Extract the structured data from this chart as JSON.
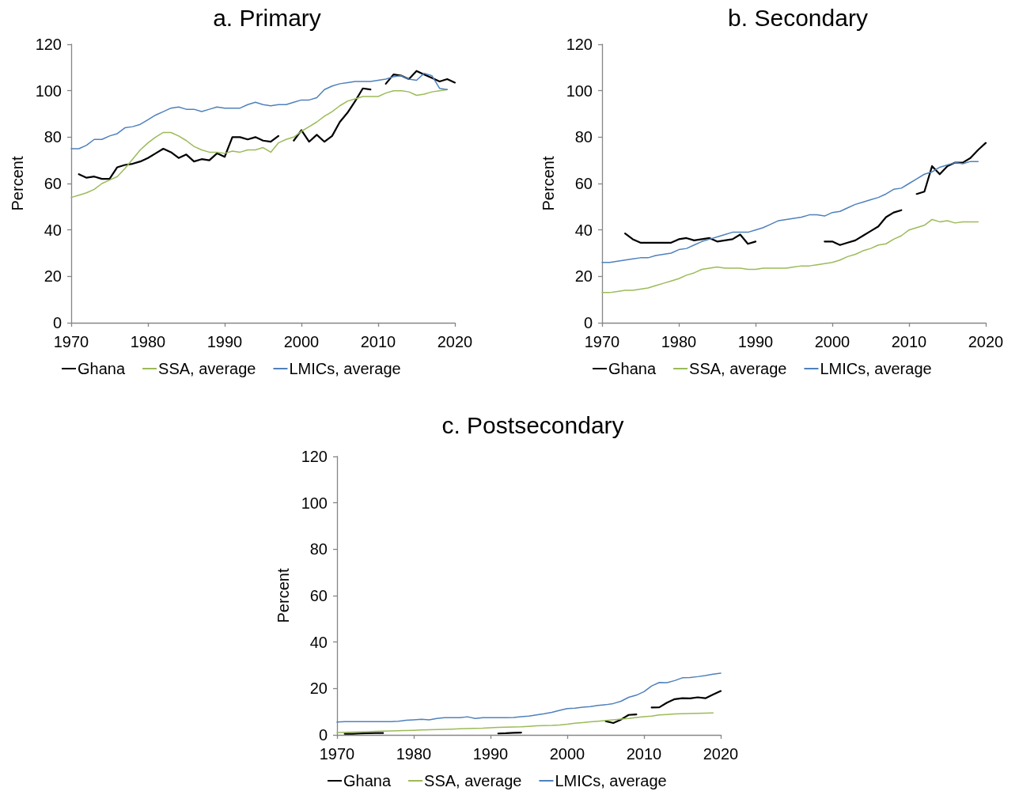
{
  "chart_data": [
    {
      "type": "line",
      "title": "a. Primary",
      "ylabel": "Percent",
      "legend": "bottom",
      "x": [
        1970,
        1971,
        1972,
        1973,
        1974,
        1975,
        1976,
        1977,
        1978,
        1979,
        1980,
        1981,
        1982,
        1983,
        1984,
        1985,
        1986,
        1987,
        1988,
        1989,
        1990,
        1991,
        1992,
        1993,
        1994,
        1995,
        1996,
        1997,
        1998,
        1999,
        2000,
        2001,
        2002,
        2003,
        2004,
        2005,
        2006,
        2007,
        2008,
        2009,
        2010,
        2011,
        2012,
        2013,
        2014,
        2015,
        2016,
        2017,
        2018,
        2019,
        2020
      ],
      "xlim": [
        1970,
        2020
      ],
      "xticks": [
        1970,
        1980,
        1990,
        2000,
        2010,
        2020
      ],
      "ylim": [
        0,
        120
      ],
      "yticks": [
        0,
        20,
        40,
        60,
        80,
        100,
        120
      ],
      "series": [
        {
          "name": "Ghana",
          "color": "#000000",
          "values": [
            null,
            64,
            62.5,
            63,
            62,
            62,
            67,
            68,
            68.5,
            69.5,
            71,
            73,
            75,
            73.5,
            71,
            72.5,
            69.5,
            70.5,
            70,
            73,
            71.5,
            80,
            80,
            79,
            80,
            78.5,
            78,
            80.5,
            null,
            78.5,
            83,
            78,
            81,
            78,
            80.5,
            86.5,
            90.5,
            95.5,
            101,
            100.5,
            null,
            103,
            107,
            106.5,
            105,
            108.5,
            107,
            105.5,
            104,
            105,
            103.5
          ]
        },
        {
          "name": "SSA, average",
          "color": "#9bbb59",
          "values": [
            54,
            55,
            56,
            57.5,
            60,
            61.5,
            63,
            66.5,
            70.5,
            74.5,
            77.5,
            80,
            82,
            82,
            80.5,
            78.5,
            76,
            74.5,
            73.5,
            73.5,
            73,
            74,
            73.5,
            74.5,
            74.5,
            75.5,
            73.5,
            77.5,
            79,
            80,
            82.5,
            84.5,
            86.5,
            89,
            91,
            93.5,
            95.5,
            96.5,
            97.5,
            97.5,
            97.5,
            99,
            100,
            100,
            99.5,
            98,
            98.5,
            99.5,
            100,
            100.5,
            null
          ]
        },
        {
          "name": "LMICs, average",
          "color": "#4f81bd",
          "values": [
            75,
            75,
            76.5,
            79,
            79,
            80.5,
            81.5,
            84,
            84.5,
            85.5,
            87.5,
            89.5,
            91,
            92.5,
            93,
            92,
            92,
            91,
            92,
            93,
            92.5,
            92.5,
            92.5,
            94,
            95,
            94,
            93.5,
            94,
            94,
            95,
            96,
            96,
            97,
            100.5,
            102,
            103,
            103.5,
            104,
            104,
            104,
            104.5,
            105,
            106,
            106.5,
            105,
            104.5,
            107.5,
            106.5,
            101,
            100.5,
            null
          ]
        }
      ]
    },
    {
      "type": "line",
      "title": "b. Secondary",
      "ylabel": "Percent",
      "legend": "bottom",
      "x": [
        1970,
        1971,
        1972,
        1973,
        1974,
        1975,
        1976,
        1977,
        1978,
        1979,
        1980,
        1981,
        1982,
        1983,
        1984,
        1985,
        1986,
        1987,
        1988,
        1989,
        1990,
        1991,
        1992,
        1993,
        1994,
        1995,
        1996,
        1997,
        1998,
        1999,
        2000,
        2001,
        2002,
        2003,
        2004,
        2005,
        2006,
        2007,
        2008,
        2009,
        2010,
        2011,
        2012,
        2013,
        2014,
        2015,
        2016,
        2017,
        2018,
        2019,
        2020
      ],
      "xlim": [
        1970,
        2020
      ],
      "xticks": [
        1970,
        1980,
        1990,
        2000,
        2010,
        2020
      ],
      "ylim": [
        0,
        120
      ],
      "yticks": [
        0,
        20,
        40,
        60,
        80,
        100,
        120
      ],
      "series": [
        {
          "name": "Ghana",
          "color": "#000000",
          "values": [
            null,
            null,
            null,
            38.5,
            36,
            34.5,
            34.5,
            34.5,
            34.5,
            34.5,
            36,
            36.5,
            35.5,
            36,
            36.5,
            35,
            35.5,
            36,
            38,
            34,
            35,
            null,
            null,
            null,
            null,
            null,
            null,
            null,
            null,
            35,
            35,
            33.5,
            34.5,
            35.5,
            37.5,
            39.5,
            41.5,
            45.5,
            47.5,
            48.5,
            null,
            55.5,
            56.5,
            67.5,
            64,
            67.5,
            69,
            69,
            71,
            74.5,
            77.5
          ]
        },
        {
          "name": "SSA, average",
          "color": "#9bbb59",
          "values": [
            13,
            13,
            13.5,
            14,
            14,
            14.5,
            15,
            16,
            17,
            18,
            19,
            20.5,
            21.5,
            23,
            23.5,
            24,
            23.5,
            23.5,
            23.5,
            23,
            23,
            23.5,
            23.5,
            23.5,
            23.5,
            24,
            24.5,
            24.5,
            25,
            25.5,
            26,
            27,
            28.5,
            29.5,
            31,
            32,
            33.5,
            34,
            36,
            37.5,
            40,
            41,
            42,
            44.5,
            43.5,
            44,
            43,
            43.5,
            43.5,
            43.5,
            null
          ]
        },
        {
          "name": "LMICs, average",
          "color": "#4f81bd",
          "values": [
            26,
            26,
            26.5,
            27,
            27.5,
            28,
            28,
            29,
            29.5,
            30,
            31.5,
            32,
            33.5,
            35,
            36,
            37,
            38,
            39,
            39,
            39,
            40,
            41,
            42.5,
            44,
            44.5,
            45,
            45.5,
            46.5,
            46.5,
            46,
            47.5,
            48,
            49.5,
            51,
            52,
            53,
            54,
            55.5,
            57.5,
            58,
            60,
            62,
            64,
            65,
            67,
            68,
            69,
            68.5,
            69.5,
            69.5,
            null
          ]
        }
      ]
    },
    {
      "type": "line",
      "title": "c. Postsecondary",
      "ylabel": "Percent",
      "legend": "bottom",
      "x": [
        1970,
        1971,
        1972,
        1973,
        1974,
        1975,
        1976,
        1977,
        1978,
        1979,
        1980,
        1981,
        1982,
        1983,
        1984,
        1985,
        1986,
        1987,
        1988,
        1989,
        1990,
        1991,
        1992,
        1993,
        1994,
        1995,
        1996,
        1997,
        1998,
        1999,
        2000,
        2001,
        2002,
        2003,
        2004,
        2005,
        2006,
        2007,
        2008,
        2009,
        2010,
        2011,
        2012,
        2013,
        2014,
        2015,
        2016,
        2017,
        2018,
        2019,
        2020
      ],
      "xlim": [
        1970,
        2020
      ],
      "xticks": [
        1970,
        1980,
        1990,
        2000,
        2010,
        2020
      ],
      "ylim": [
        0,
        120
      ],
      "yticks": [
        0,
        20,
        40,
        60,
        80,
        100,
        120
      ],
      "series": [
        {
          "name": "Ghana",
          "color": "#000000",
          "values": [
            null,
            0.5,
            0.5,
            0.6,
            0.7,
            0.8,
            0.8,
            null,
            null,
            null,
            null,
            null,
            null,
            null,
            null,
            null,
            null,
            null,
            null,
            null,
            null,
            0.6,
            0.7,
            0.9,
            1,
            null,
            null,
            null,
            null,
            null,
            null,
            null,
            null,
            null,
            null,
            5.9,
            5.1,
            6.6,
            8.6,
            8.8,
            null,
            11.8,
            11.9,
            13.9,
            15.4,
            15.8,
            15.7,
            16.2,
            15.8,
            17.4,
            18.9
          ]
        },
        {
          "name": "SSA, average",
          "color": "#9bbb59",
          "values": [
            1,
            1.1,
            1.2,
            1.3,
            1.4,
            1.5,
            1.6,
            1.7,
            1.8,
            1.9,
            2,
            2.1,
            2.2,
            2.3,
            2.4,
            2.5,
            2.6,
            2.7,
            2.8,
            2.9,
            3.1,
            3.2,
            3.3,
            3.4,
            3.5,
            3.7,
            3.9,
            4,
            4.1,
            4.3,
            4.6,
            5,
            5.3,
            5.6,
            5.9,
            6.2,
            6.5,
            6.8,
            7.1,
            7.5,
            7.8,
            8.1,
            8.6,
            8.8,
            9,
            9.1,
            9.2,
            9.3,
            9.4,
            9.5,
            null
          ]
        },
        {
          "name": "LMICs, average",
          "color": "#4f81bd",
          "values": [
            5.5,
            5.7,
            5.7,
            5.7,
            5.7,
            5.7,
            5.7,
            5.7,
            5.9,
            6.3,
            6.5,
            6.7,
            6.5,
            7.1,
            7.4,
            7.4,
            7.4,
            7.8,
            7.1,
            7.4,
            7.4,
            7.4,
            7.4,
            7.5,
            7.8,
            8.1,
            8.6,
            9.1,
            9.7,
            10.6,
            11.3,
            11.5,
            11.9,
            12.2,
            12.7,
            13,
            13.5,
            14.5,
            16.2,
            17.1,
            18.6,
            21.1,
            22.6,
            22.5,
            23.4,
            24.6,
            24.7,
            25.1,
            25.6,
            26.2,
            26.6
          ]
        }
      ]
    }
  ]
}
